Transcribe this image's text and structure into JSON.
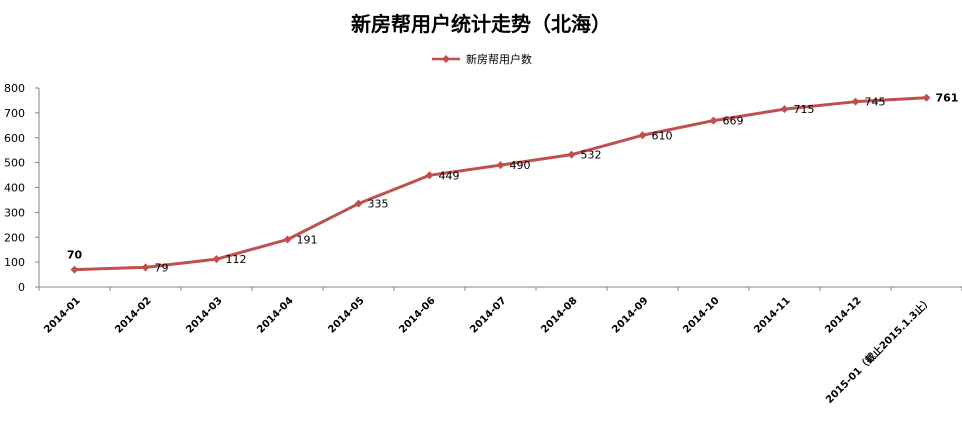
{
  "chart_data": {
    "type": "line",
    "title": "新房帮用户统计走势（北海）",
    "xlabel": "",
    "ylabel": "",
    "ylim": [
      0,
      800
    ],
    "yticks": [
      0,
      100,
      200,
      300,
      400,
      500,
      600,
      700,
      800
    ],
    "grid": false,
    "legend_position": "top-center",
    "categories": [
      "2014-01",
      "2014-02",
      "2014-03",
      "2014-04",
      "2014-05",
      "2014-06",
      "2014-07",
      "2014-08",
      "2014-09",
      "2014-10",
      "2014-11",
      "2014-12",
      "2015-01（截止2015.1.3止）"
    ],
    "series": [
      {
        "name": "新房帮用户数",
        "color": "#c0504d",
        "values": [
          70,
          79,
          112,
          191,
          335,
          449,
          490,
          532,
          610,
          669,
          715,
          745,
          761
        ],
        "data_labels": [
          "70",
          "79",
          "112",
          "191",
          "335",
          "449",
          "490",
          "532",
          "610",
          "669",
          "715",
          "745",
          "761"
        ]
      }
    ]
  }
}
